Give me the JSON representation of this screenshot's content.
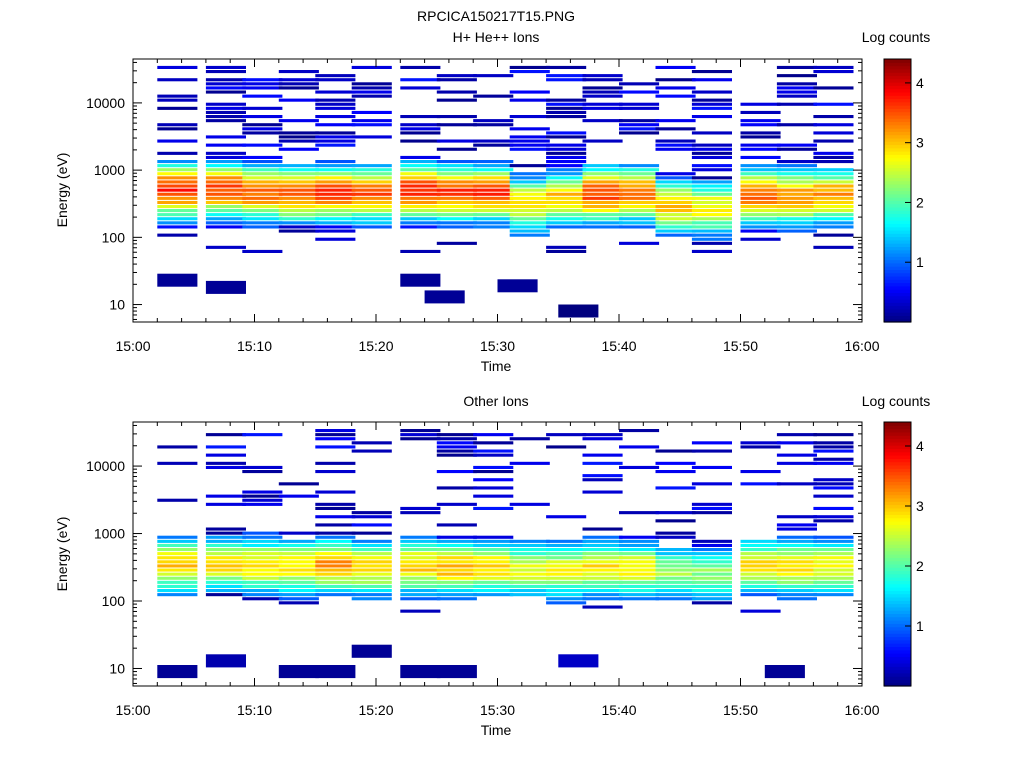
{
  "figure_title": "RPCICA150217T15.PNG",
  "colormap_stops": [
    "#00007f",
    "#0000ff",
    "#007fff",
    "#00ffff",
    "#7fff7f",
    "#ffff00",
    "#ff7f00",
    "#ff0000",
    "#7f0000"
  ],
  "chart_data": [
    {
      "type": "heatmap",
      "title": "H+ He++ Ions",
      "xlabel": "Time",
      "ylabel": "Energy (eV)",
      "x_range": [
        "15:00",
        "16:00"
      ],
      "x_ticks": [
        "15:00",
        "15:10",
        "15:20",
        "15:30",
        "15:40",
        "15:50",
        "16:00"
      ],
      "y_scale": "log",
      "y_range": [
        5.5,
        45000
      ],
      "y_ticks": [
        10,
        100,
        1000,
        10000
      ],
      "y_tick_labels": [
        "10",
        "100",
        "1000",
        "10000"
      ],
      "colorbar": {
        "label": "Log counts",
        "range": [
          0,
          4.4
        ],
        "ticks": [
          1,
          2,
          3,
          4
        ],
        "tick_labels": [
          "1",
          "2",
          "3",
          "4"
        ]
      },
      "time_bins": [
        "15:02",
        "15:06",
        "15:09",
        "15:12",
        "15:15",
        "15:18",
        "15:22",
        "15:25",
        "15:28",
        "15:31",
        "15:34",
        "15:37",
        "15:40",
        "15:43",
        "15:46",
        "15:50",
        "15:53",
        "15:56"
      ],
      "peak_energy_eV": [
        480,
        500,
        450,
        420,
        440,
        430,
        460,
        450,
        440,
        300,
        360,
        420,
        430,
        280,
        260,
        400,
        380,
        400
      ],
      "peak_log_counts": [
        3.7,
        3.6,
        3.5,
        3.5,
        3.6,
        3.5,
        3.7,
        3.6,
        3.6,
        2.9,
        3.0,
        3.6,
        3.4,
        3.0,
        2.8,
        3.4,
        3.3,
        3.2
      ],
      "low_energy_events": [
        {
          "time": "15:02",
          "energy_eV": 23,
          "log_counts": 0.1
        },
        {
          "time": "15:06",
          "energy_eV": 18,
          "log_counts": 0.1
        },
        {
          "time": "15:22",
          "energy_eV": 23,
          "log_counts": 0.1
        },
        {
          "time": "15:24",
          "energy_eV": 13,
          "log_counts": 0.1
        },
        {
          "time": "15:30",
          "energy_eV": 19,
          "log_counts": 0.1
        },
        {
          "time": "15:35",
          "energy_eV": 8,
          "log_counts": 0.0
        }
      ]
    },
    {
      "type": "heatmap",
      "title": "Other Ions",
      "xlabel": "Time",
      "ylabel": "Energy (eV)",
      "x_range": [
        "15:00",
        "16:00"
      ],
      "x_ticks": [
        "15:00",
        "15:10",
        "15:20",
        "15:30",
        "15:40",
        "15:50",
        "16:00"
      ],
      "y_scale": "log",
      "y_range": [
        5.5,
        45000
      ],
      "y_ticks": [
        10,
        100,
        1000,
        10000
      ],
      "y_tick_labels": [
        "10",
        "100",
        "1000",
        "10000"
      ],
      "colorbar": {
        "label": "Log counts",
        "range": [
          0,
          4.4
        ],
        "ticks": [
          1,
          2,
          3,
          4
        ],
        "tick_labels": [
          "1",
          "2",
          "3",
          "4"
        ]
      },
      "time_bins": [
        "15:02",
        "15:06",
        "15:09",
        "15:12",
        "15:15",
        "15:18",
        "15:22",
        "15:25",
        "15:28",
        "15:31",
        "15:34",
        "15:37",
        "15:40",
        "15:43",
        "15:46",
        "15:50",
        "15:53",
        "15:56"
      ],
      "peak_energy_eV": [
        330,
        330,
        320,
        310,
        320,
        300,
        310,
        300,
        300,
        280,
        270,
        300,
        280,
        250,
        240,
        320,
        300,
        310
      ],
      "peak_log_counts": [
        3.0,
        2.9,
        2.9,
        2.9,
        3.2,
        3.0,
        3.0,
        3.1,
        2.9,
        2.7,
        2.7,
        2.8,
        2.8,
        2.4,
        2.3,
        2.8,
        2.9,
        2.8
      ],
      "low_energy_events": [
        {
          "time": "15:02",
          "energy_eV": 9,
          "log_counts": 0.1
        },
        {
          "time": "15:06",
          "energy_eV": 13,
          "log_counts": 0.2
        },
        {
          "time": "15:12",
          "energy_eV": 9,
          "log_counts": 0.1
        },
        {
          "time": "15:15",
          "energy_eV": 9,
          "log_counts": 0.1
        },
        {
          "time": "15:18",
          "energy_eV": 18,
          "log_counts": 0.1
        },
        {
          "time": "15:22",
          "energy_eV": 9,
          "log_counts": 0.1
        },
        {
          "time": "15:25",
          "energy_eV": 9,
          "log_counts": 0.1
        },
        {
          "time": "15:35",
          "energy_eV": 13,
          "log_counts": 0.3
        },
        {
          "time": "15:52",
          "energy_eV": 9,
          "log_counts": 0.1
        }
      ]
    }
  ]
}
